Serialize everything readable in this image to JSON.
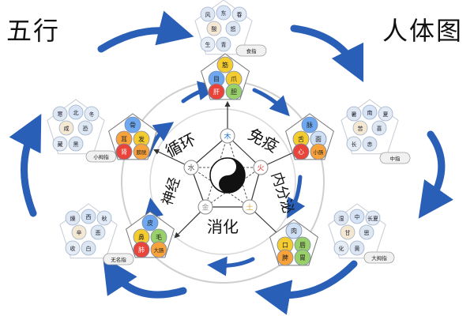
{
  "titles": {
    "left": "五行",
    "right": "人体图"
  },
  "ring_words": {
    "top_left": "循环",
    "top_right": "免疫",
    "right": "内分泌",
    "bottom": "消化",
    "left": "神经"
  },
  "elements": [
    {
      "key": "wood",
      "name": "木",
      "color": "#2b7bd6"
    },
    {
      "key": "fire",
      "name": "火",
      "color": "#e0322d"
    },
    {
      "key": "earth",
      "name": "土",
      "color": "#e0a83a"
    },
    {
      "key": "metal",
      "name": "金",
      "color": "#999999"
    },
    {
      "key": "water",
      "name": "水",
      "color": "#555555"
    }
  ],
  "clusters": [
    {
      "key": "wood",
      "inner": [
        "筋",
        "目",
        "爪",
        "肝",
        "胆"
      ],
      "outer": [
        "风",
        "东",
        "春",
        "酸",
        "怒",
        "生",
        "青"
      ],
      "finger": "食指"
    },
    {
      "key": "fire",
      "inner": [
        "脉",
        "舌",
        "面",
        "心",
        "小肠"
      ],
      "outer": [
        "暑",
        "南",
        "夏",
        "苦",
        "喜",
        "长",
        "赤"
      ],
      "finger": "中指"
    },
    {
      "key": "earth",
      "inner": [
        "肉",
        "口",
        "唇",
        "脾",
        "胃"
      ],
      "outer": [
        "湿",
        "中",
        "长夏",
        "甘",
        "思",
        "化",
        "黄"
      ],
      "finger": "大拇指"
    },
    {
      "key": "metal",
      "inner": [
        "皮",
        "鼻",
        "毛",
        "肺",
        "大肠"
      ],
      "outer": [
        "燥",
        "西",
        "秋",
        "辛",
        "悲",
        "收",
        "白"
      ],
      "finger": "无名指"
    },
    {
      "key": "water",
      "inner": [
        "骨",
        "耳",
        "发",
        "肾",
        "膀胱"
      ],
      "outer": [
        "寒",
        "北",
        "冬",
        "咸",
        "恐",
        "藏",
        "黑"
      ],
      "finger": "小拇指"
    }
  ],
  "colors": {
    "arrow_blue": "#2a5fb8",
    "ring": "#cfcfcf",
    "bubble_stroke": "#aab4c8"
  }
}
